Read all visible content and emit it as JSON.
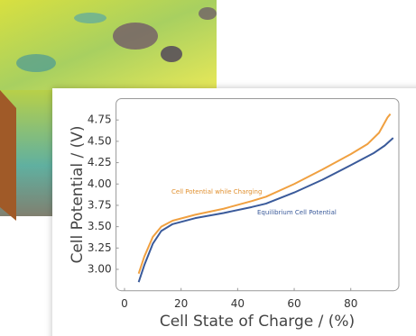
{
  "chart_data": {
    "type": "line",
    "x_label": "Cell State of Charge / (%)",
    "y_label": "Cell Potential / (V)",
    "xlim": [
      -3,
      97
    ],
    "xticks": [
      0,
      20,
      40,
      60,
      80
    ],
    "ylim": [
      2.75,
      5.0
    ],
    "yticks": [
      {
        "value": 3.0,
        "label": "3.00"
      },
      {
        "value": 3.25,
        "label": "3.25"
      },
      {
        "value": 3.5,
        "label": "3.50"
      },
      {
        "value": 3.75,
        "label": "3.75"
      },
      {
        "value": 4.0,
        "label": "4.00"
      },
      {
        "value": 4.25,
        "label": "4.25"
      },
      {
        "value": 4.5,
        "label": "4.50"
      },
      {
        "value": 4.75,
        "label": "4.75"
      }
    ],
    "series": [
      {
        "name": "Cell Potential while Charging",
        "color": "#f0a040",
        "x": [
          5,
          7,
          10,
          13,
          17,
          25,
          35,
          45,
          50,
          60,
          70,
          80,
          86,
          90,
          93,
          94
        ],
        "values": [
          2.95,
          3.15,
          3.38,
          3.5,
          3.57,
          3.64,
          3.71,
          3.8,
          3.85,
          4.0,
          4.17,
          4.35,
          4.47,
          4.6,
          4.78,
          4.82
        ]
      },
      {
        "name": "Equilibrium Cell Potential",
        "color": "#3a5a9a",
        "x": [
          5,
          7,
          10,
          13,
          17,
          25,
          35,
          45,
          50,
          60,
          70,
          80,
          88,
          92,
          95
        ],
        "values": [
          2.85,
          3.05,
          3.3,
          3.45,
          3.53,
          3.6,
          3.66,
          3.73,
          3.77,
          3.9,
          4.05,
          4.22,
          4.36,
          4.45,
          4.54
        ]
      }
    ]
  }
}
